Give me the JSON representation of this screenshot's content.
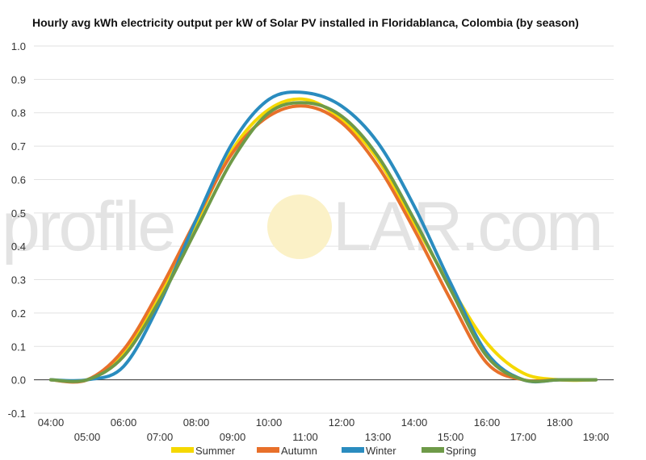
{
  "watermark": {
    "brand_left": "profile",
    "brand_right": "LAR.com",
    "sun_color": "#fbf1c7"
  },
  "chart_data": {
    "type": "line",
    "title": "Hourly avg kWh electricity output per kW of Solar PV installed in Floridablanca, Colombia (by season)",
    "xlabel": "",
    "ylabel": "",
    "x": [
      "04:00",
      "05:00",
      "06:00",
      "07:00",
      "08:00",
      "09:00",
      "10:00",
      "11:00",
      "12:00",
      "13:00",
      "14:00",
      "15:00",
      "16:00",
      "17:00",
      "18:00",
      "19:00"
    ],
    "ylim": [
      -0.1,
      1.0
    ],
    "yticks": [
      -0.1,
      0.0,
      0.1,
      0.2,
      0.3,
      0.4,
      0.5,
      0.6,
      0.7,
      0.8,
      0.9,
      1.0
    ],
    "ytick_labels": [
      "-0.1",
      "0.0",
      "0.1",
      "0.2",
      "0.3",
      "0.4",
      "0.5",
      "0.6",
      "0.7",
      "0.8",
      "0.9",
      "1.0"
    ],
    "grid": true,
    "legend_position": "bottom",
    "series": [
      {
        "name": "Summer",
        "color": "#f5d800",
        "values": [
          0.0,
          0.0,
          0.08,
          0.25,
          0.47,
          0.69,
          0.81,
          0.84,
          0.78,
          0.66,
          0.47,
          0.28,
          0.11,
          0.02,
          0.0,
          0.0
        ]
      },
      {
        "name": "Autumn",
        "color": "#e8702a",
        "values": [
          0.0,
          0.0,
          0.09,
          0.27,
          0.48,
          0.68,
          0.79,
          0.82,
          0.77,
          0.64,
          0.45,
          0.24,
          0.05,
          0.0,
          0.0,
          0.0
        ]
      },
      {
        "name": "Winter",
        "color": "#2a8cbf",
        "values": [
          0.0,
          0.0,
          0.04,
          0.23,
          0.48,
          0.71,
          0.84,
          0.86,
          0.82,
          0.71,
          0.52,
          0.29,
          0.08,
          0.0,
          0.0,
          0.0
        ]
      },
      {
        "name": "Spring",
        "color": "#6e9a48",
        "values": [
          0.0,
          0.0,
          0.07,
          0.24,
          0.45,
          0.66,
          0.8,
          0.83,
          0.79,
          0.67,
          0.48,
          0.27,
          0.07,
          0.0,
          0.0,
          0.0
        ]
      }
    ]
  }
}
